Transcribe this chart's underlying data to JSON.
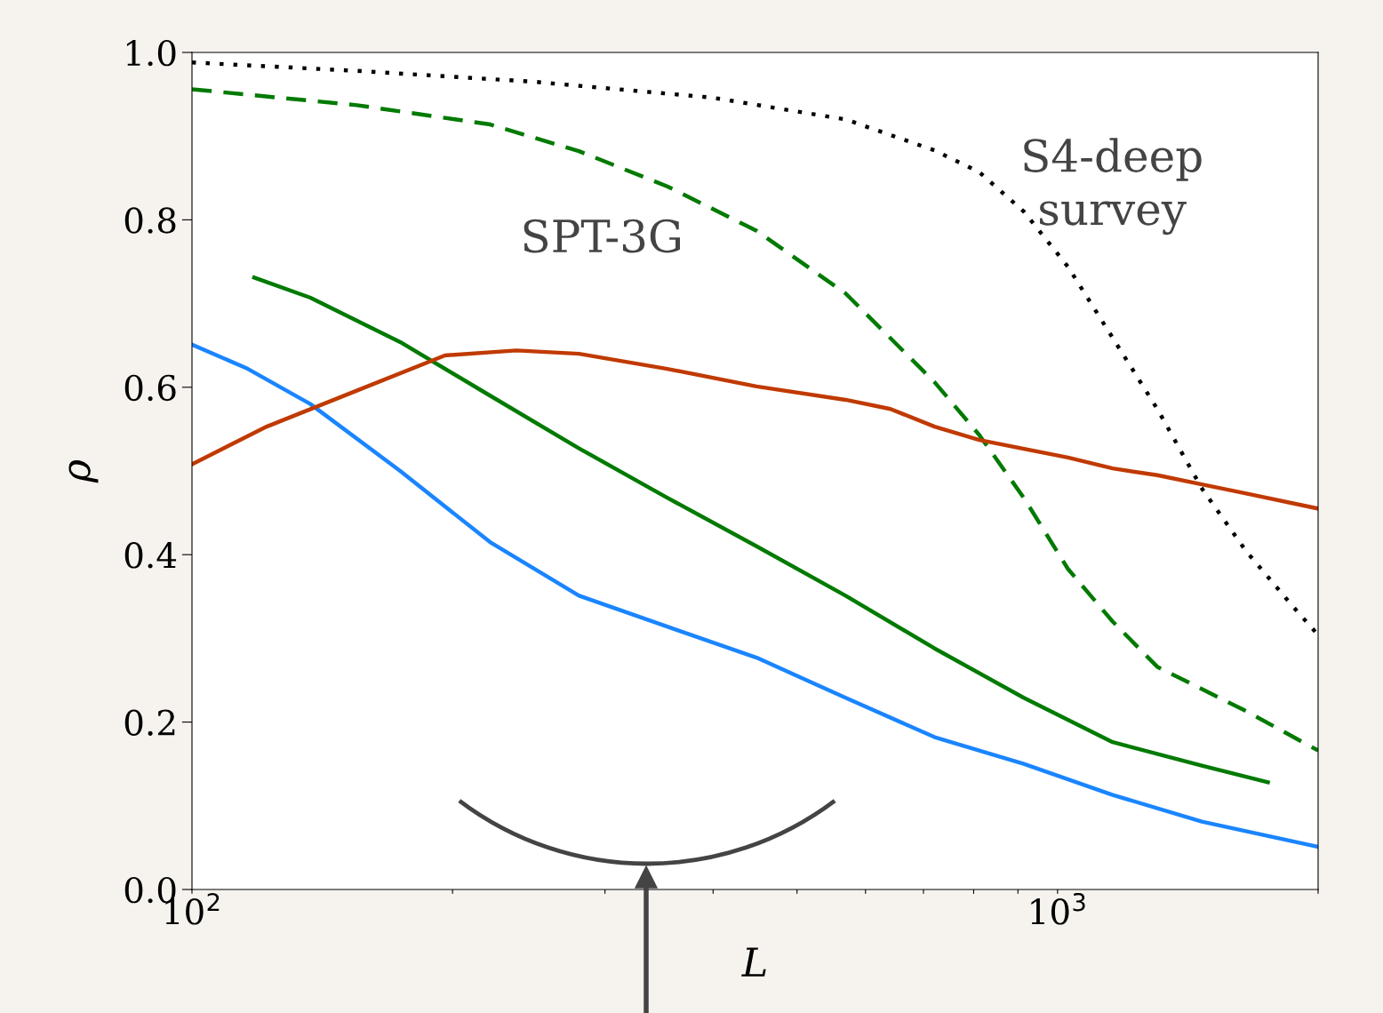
{
  "chart_data": {
    "type": "line",
    "xlabel": "L",
    "ylabel": "ρ",
    "log": "x",
    "grid": false,
    "legend": false,
    "xlim": [
      100,
      2000
    ],
    "ylim": [
      0,
      1
    ],
    "xticks": [
      {
        "value": 100,
        "label": "10$^{2}$"
      },
      {
        "value": 200,
        "label": null
      },
      {
        "value": 300,
        "label": null
      },
      {
        "value": 400,
        "label": null
      },
      {
        "value": 500,
        "label": null
      },
      {
        "value": 600,
        "label": null
      },
      {
        "value": 700,
        "label": null
      },
      {
        "value": 800,
        "label": null
      },
      {
        "value": 900,
        "label": null
      },
      {
        "value": 1000,
        "label": "10$^{3}$"
      },
      {
        "value": 2000,
        "label": null
      }
    ],
    "yticks": [
      {
        "value": 0,
        "label": "0.0"
      },
      {
        "value": 0.2,
        "label": "0.2"
      },
      {
        "value": 0.4,
        "label": "0.4"
      },
      {
        "value": 0.6,
        "label": "0.6"
      },
      {
        "value": 0.8,
        "label": "0.8"
      },
      {
        "value": 1,
        "label": "1.0"
      }
    ],
    "series": [
      {
        "color": "#000000",
        "line_style": "dotted",
        "x": [
          100,
          155,
          248,
          399,
          569,
          721,
          812,
          914,
          1028,
          1158,
          1304,
          1468,
          1652,
          1860,
          2000
        ],
        "values": [
          0.988,
          0.978,
          0.965,
          0.946,
          0.92,
          0.883,
          0.857,
          0.81,
          0.744,
          0.659,
          0.574,
          0.479,
          0.404,
          0.341,
          0.304
        ]
      },
      {
        "color": "#007a00",
        "line_style": "dashed",
        "x": [
          100,
          155,
          221,
          280,
          354,
          449,
          569,
          721,
          812,
          914,
          1028,
          1158,
          1304,
          1652,
          2000
        ],
        "values": [
          0.956,
          0.937,
          0.914,
          0.882,
          0.84,
          0.787,
          0.712,
          0.606,
          0.543,
          0.468,
          0.383,
          0.32,
          0.266,
          0.213,
          0.166
        ]
      },
      {
        "color": "#007a00",
        "line_style": "solid",
        "x": [
          118,
          137,
          174,
          221,
          280,
          354,
          449,
          569,
          721,
          914,
          1158,
          1468,
          1750
        ],
        "values": [
          0.731,
          0.707,
          0.654,
          0.59,
          0.527,
          0.468,
          0.41,
          0.351,
          0.288,
          0.229,
          0.176,
          0.148,
          0.128
        ]
      },
      {
        "color": "#1a85ff",
        "line_style": "solid",
        "x": [
          100,
          116,
          137,
          174,
          221,
          280,
          354,
          449,
          569,
          721,
          914,
          1158,
          1468,
          2000
        ],
        "values": [
          0.651,
          0.622,
          0.58,
          0.5,
          0.415,
          0.351,
          0.314,
          0.277,
          0.229,
          0.182,
          0.15,
          0.113,
          0.081,
          0.051
        ]
      },
      {
        "color": "#c03a00",
        "line_style": "solid",
        "x": [
          100,
          122,
          155,
          196,
          237,
          280,
          354,
          449,
          569,
          641,
          721,
          812,
          1028,
          1158,
          1304,
          1468,
          1652,
          2000
        ],
        "values": [
          0.508,
          0.553,
          0.596,
          0.638,
          0.644,
          0.64,
          0.622,
          0.601,
          0.585,
          0.574,
          0.553,
          0.537,
          0.516,
          0.503,
          0.495,
          0.484,
          0.473,
          0.455
        ]
      }
    ],
    "annotations": [
      "SPT-3G",
      "S4-deep\nsurvey"
    ]
  }
}
